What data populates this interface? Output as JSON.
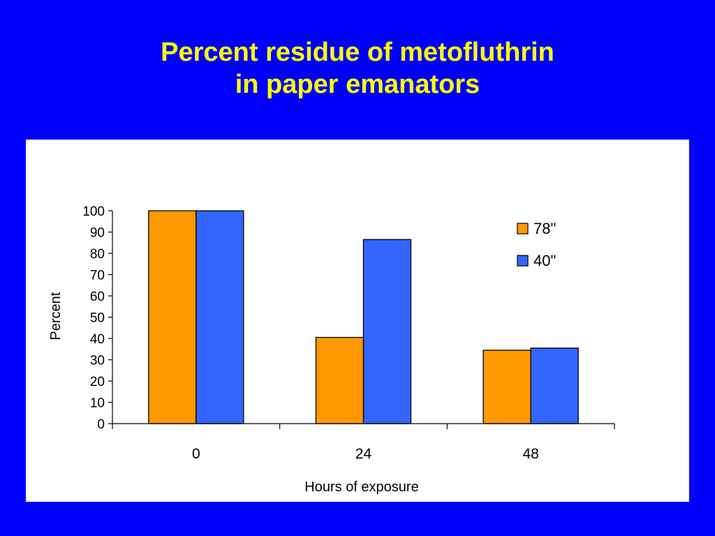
{
  "title_lines": [
    "Percent residue of metofluthrin",
    "in paper emanators"
  ],
  "chart_data": {
    "type": "bar",
    "title": "Percent residue of metofluthrin in paper emanators",
    "categories": [
      "0",
      "24",
      "48"
    ],
    "series": [
      {
        "name": "78\"",
        "values": [
          100,
          40.5,
          34.5
        ],
        "color": "#ff9900"
      },
      {
        "name": "40\"",
        "values": [
          100,
          86.5,
          35.5
        ],
        "color": "#3366ff"
      }
    ],
    "xlabel": "Hours of exposure",
    "ylabel": "Percent",
    "ylim": [
      0,
      100
    ],
    "yticks": [
      "0",
      "10",
      "20",
      "30",
      "40",
      "50",
      "60",
      "70",
      "80",
      "90",
      "100"
    ],
    "grid": false,
    "legend_position": "top-right"
  }
}
